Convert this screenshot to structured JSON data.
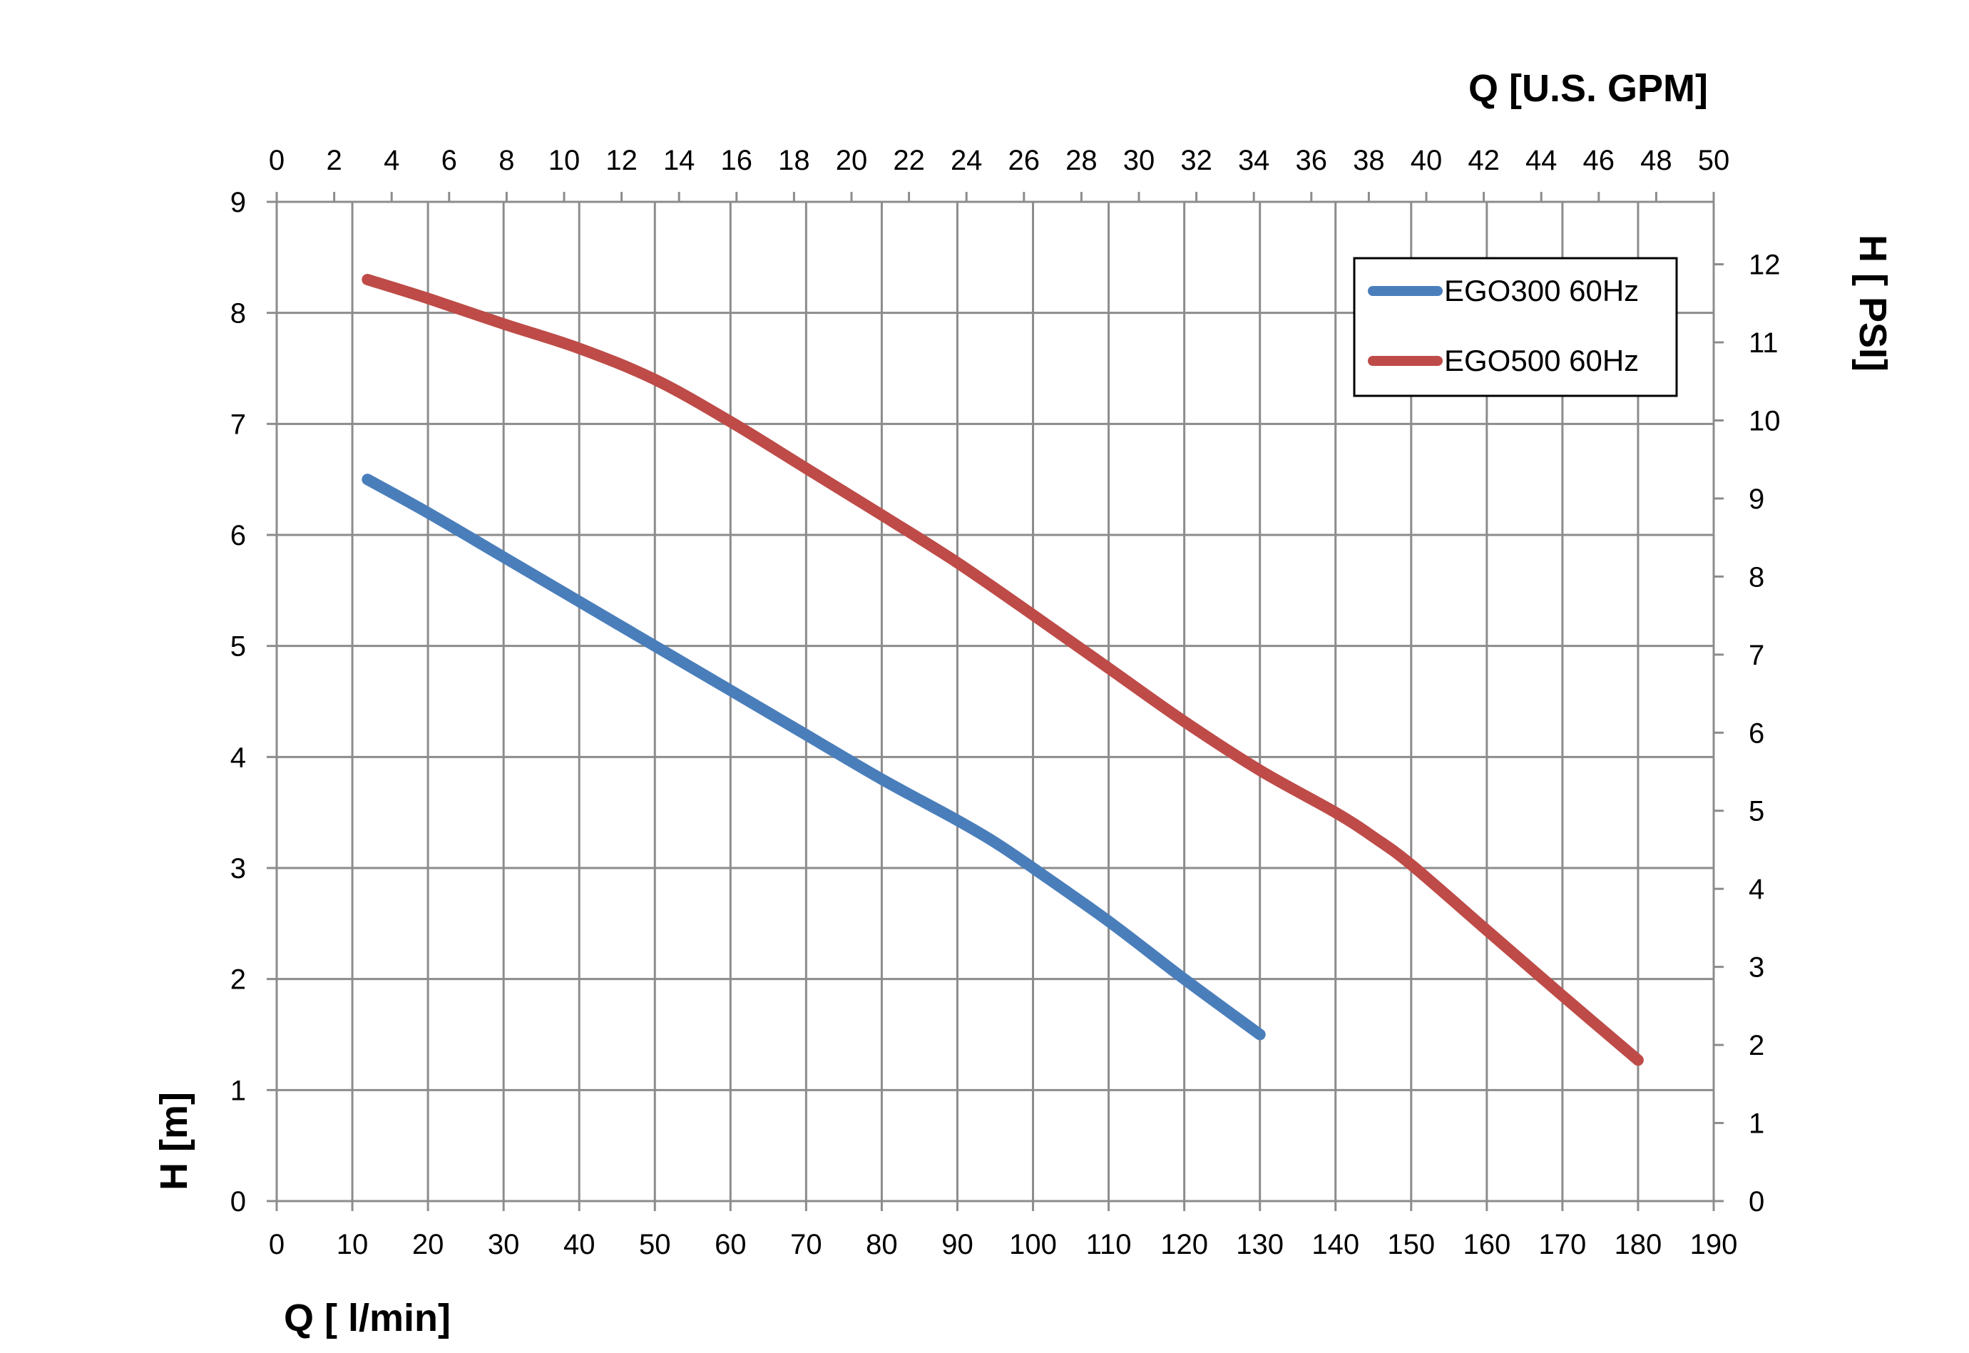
{
  "chart_data": {
    "type": "line",
    "title": "",
    "xlabel": "Q [ l/min]",
    "ylabel": "H [m]",
    "x2label": "Q  [U.S. GPM]",
    "y2label": "H [ PSI]",
    "xlim": [
      0,
      190
    ],
    "ylim": [
      0,
      9
    ],
    "x2lim": [
      0,
      50
    ],
    "y2lim": [
      0,
      12.8
    ],
    "x_ticks": [
      "0",
      "10",
      "20",
      "30",
      "40",
      "50",
      "60",
      "70",
      "80",
      "90",
      "100",
      "110",
      "120",
      "130",
      "140",
      "150",
      "160",
      "170",
      "180",
      "190"
    ],
    "y_ticks": [
      "0",
      "1",
      "2",
      "3",
      "4",
      "5",
      "6",
      "7",
      "8",
      "9"
    ],
    "x2_ticks": [
      "0",
      "2",
      "4",
      "6",
      "8",
      "10",
      "12",
      "14",
      "16",
      "18",
      "20",
      "22",
      "24",
      "26",
      "28",
      "30",
      "32",
      "34",
      "36",
      "38",
      "40",
      "42",
      "44",
      "46",
      "48",
      "50"
    ],
    "y2_ticks": [
      "0",
      "1",
      "2",
      "3",
      "4",
      "5",
      "6",
      "7",
      "8",
      "9",
      "10",
      "11",
      "12"
    ],
    "grid": true,
    "legend_position": "top-right",
    "series": [
      {
        "name": "EGO300 60Hz",
        "color": "#4a7ebb",
        "x": [
          12,
          20,
          30,
          40,
          50,
          60,
          70,
          80,
          90,
          95,
          100,
          110,
          120,
          130
        ],
        "y": [
          6.5,
          6.2,
          5.8,
          5.4,
          5.0,
          4.6,
          4.2,
          3.8,
          3.43,
          3.23,
          3.0,
          2.52,
          2.0,
          1.5
        ]
      },
      {
        "name": "EGO500 60Hz",
        "color": "#be4b48",
        "x": [
          12,
          20,
          30,
          40,
          50,
          60,
          70,
          80,
          90,
          100,
          110,
          120,
          130,
          140,
          145,
          150,
          160,
          170,
          180
        ],
        "y": [
          8.3,
          8.13,
          7.9,
          7.68,
          7.4,
          7.02,
          6.6,
          6.18,
          5.75,
          5.28,
          4.8,
          4.32,
          3.88,
          3.5,
          3.28,
          3.03,
          2.44,
          1.85,
          1.27
        ]
      }
    ]
  }
}
